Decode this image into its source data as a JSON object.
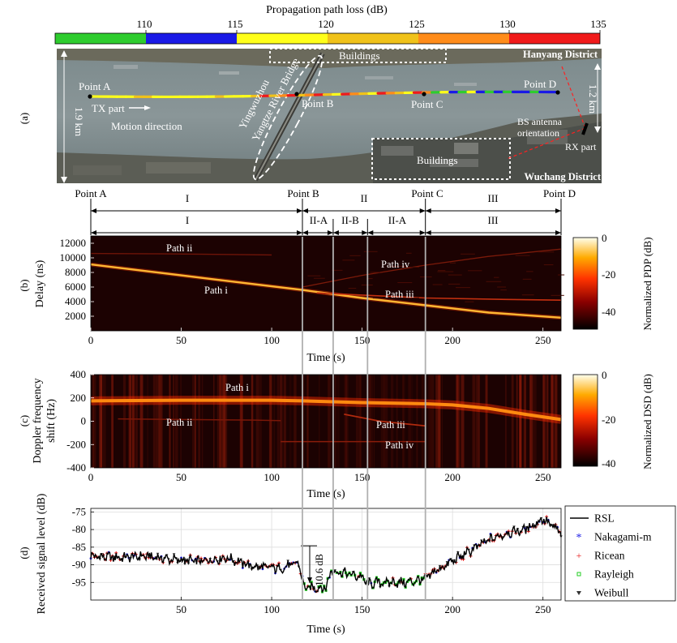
{
  "colorbar_top": {
    "title": "Propagation path loss (dB)",
    "min": 105,
    "max": 135,
    "ticks": [
      "110",
      "115",
      "120",
      "125",
      "130",
      "135"
    ],
    "tick_values": [
      110,
      115,
      120,
      125,
      130,
      135
    ],
    "bands": [
      {
        "from": 105,
        "to": 110,
        "color": "#2ecc2e"
      },
      {
        "from": 110,
        "to": 115,
        "color": "#1a1ae6"
      },
      {
        "from": 115,
        "to": 120,
        "color": "#ffff1a"
      },
      {
        "from": 120,
        "to": 125,
        "color": "#f0c21a"
      },
      {
        "from": 125,
        "to": 130,
        "color": "#ff8c1a"
      },
      {
        "from": 130,
        "to": 135,
        "color": "#f01a1a"
      }
    ]
  },
  "map": {
    "panel_label": "(a)",
    "point_a": "Point A",
    "point_b": "Point B",
    "point_c": "Point C",
    "point_d": "Point D",
    "tx_part": "TX part",
    "motion_direction": "Motion direction",
    "bridge_line1": "Yingwuzhou",
    "bridge_line2": "Yangtze River Bridge",
    "buildings_top": "Buildings",
    "buildings_bottom": "Buildings",
    "hanyang": "Hanyang District",
    "wuchang": "Wuchang District",
    "dist_left": "1.9 km",
    "dist_right": "1.2 km",
    "bs_line1": "BS antenna",
    "bs_line2": "orientation",
    "rx_part": "RX part"
  },
  "segments": {
    "points": [
      "Point A",
      "Point B",
      "Point C",
      "Point D"
    ],
    "row1": [
      "I",
      "II",
      "III"
    ],
    "row2": [
      "I",
      "II-A",
      "II-B",
      "II-A",
      "III"
    ],
    "boundaries_s": [
      0,
      117,
      134,
      153,
      185,
      260
    ]
  },
  "chart_data": [
    {
      "type": "heatmap",
      "panel_label": "(b)",
      "xlabel": "Time (s)",
      "ylabel": "Delay (ns)",
      "xlim": [
        0,
        260
      ],
      "ylim": [
        0,
        13000
      ],
      "xticks": [
        0,
        50,
        100,
        150,
        200,
        250
      ],
      "yticks": [
        2000,
        4000,
        6000,
        8000,
        10000,
        12000
      ],
      "colorbar": {
        "label": "Normalized PDP (dB)",
        "ticks": [
          "0",
          "-20",
          "-40"
        ],
        "range": [
          -50,
          0
        ]
      },
      "paths": [
        {
          "name": "Path i",
          "x": [
            0,
            50,
            100,
            117,
            150,
            185,
            220,
            260
          ],
          "y": [
            9100,
            7600,
            6100,
            5600,
            4500,
            3500,
            2500,
            1800
          ]
        },
        {
          "name": "Path ii",
          "x": [
            0,
            40,
            80,
            100
          ],
          "y": [
            10600,
            10550,
            10450,
            10400
          ]
        },
        {
          "name": "Path iii",
          "x": [
            125,
            150,
            185,
            230,
            260
          ],
          "y": [
            5200,
            4900,
            4500,
            4300,
            4200
          ]
        },
        {
          "name": "Path iv",
          "x": [
            117,
            150,
            185,
            220,
            260
          ],
          "y": [
            6000,
            7600,
            9000,
            10200,
            11200
          ]
        }
      ],
      "labels": [
        "Path ii",
        "Path i",
        "Path iv",
        "Path iii"
      ]
    },
    {
      "type": "heatmap",
      "panel_label": "(c)",
      "xlabel": "Time (s)",
      "ylabel_line1": "Doppler frequency",
      "ylabel_line2": "shift (Hz)",
      "xlim": [
        0,
        260
      ],
      "ylim": [
        -400,
        400
      ],
      "xticks": [
        0,
        50,
        100,
        150,
        200,
        250
      ],
      "yticks": [
        400,
        200,
        0,
        -200,
        -400
      ],
      "colorbar": {
        "label": "Normalized DSD (dB)",
        "ticks": [
          "0",
          "-20",
          "-40"
        ],
        "range": [
          -40,
          0
        ]
      },
      "paths": [
        {
          "name": "Path i",
          "x": [
            0,
            50,
            100,
            117,
            150,
            185,
            200,
            220,
            240,
            260
          ],
          "y": [
            175,
            180,
            180,
            175,
            160,
            150,
            140,
            110,
            60,
            15
          ]
        },
        {
          "name": "Path ii",
          "x": [
            15,
            50,
            90,
            105
          ],
          "y": [
            20,
            15,
            10,
            5
          ]
        },
        {
          "name": "Path iii",
          "x": [
            140,
            160,
            185
          ],
          "y": [
            60,
            0,
            -40
          ]
        },
        {
          "name": "Path iv",
          "x": [
            105,
            140,
            185
          ],
          "y": [
            -175,
            -175,
            -175
          ]
        }
      ],
      "labels": [
        "Path i",
        "Path ii",
        "Path iii",
        "Path iv"
      ]
    },
    {
      "type": "line",
      "panel_label": "(d)",
      "xlabel": "Time (s)",
      "ylabel": "Received signal level (dB)",
      "xlim": [
        0,
        260
      ],
      "ylim": [
        -100,
        -74
      ],
      "xticks": [
        50,
        100,
        150,
        200,
        250
      ],
      "yticks": [
        -75,
        -80,
        -85,
        -90,
        -95
      ],
      "annotation": "10.6 dB",
      "annotation_range": [
        -84.6,
        -95.2
      ],
      "rsl_profile": {
        "x": [
          0,
          15,
          30,
          45,
          60,
          75,
          90,
          105,
          115,
          118,
          130,
          133,
          137,
          150,
          153,
          160,
          175,
          185,
          190,
          200,
          210,
          220,
          230,
          240,
          250,
          255,
          260
        ],
        "y": [
          -87.5,
          -88,
          -87.5,
          -88.5,
          -89,
          -88,
          -90.5,
          -91,
          -89.5,
          -96.5,
          -96.5,
          -91.5,
          -92,
          -93.5,
          -95.5,
          -95,
          -95,
          -94,
          -92,
          -89,
          -86,
          -83,
          -81,
          -80,
          -77,
          -79,
          -81
        ]
      },
      "series": [
        {
          "name": "RSL",
          "color": "#000000",
          "marker": "line"
        },
        {
          "name": "Nakagami-m",
          "color": "#1a1ae6",
          "marker": "star"
        },
        {
          "name": "Ricean",
          "color": "#e61a1a",
          "marker": "plus"
        },
        {
          "name": "Rayleigh",
          "color": "#22cc22",
          "marker": "square"
        },
        {
          "name": "Weibull",
          "color": "#333333",
          "marker": "triangle"
        }
      ]
    }
  ]
}
